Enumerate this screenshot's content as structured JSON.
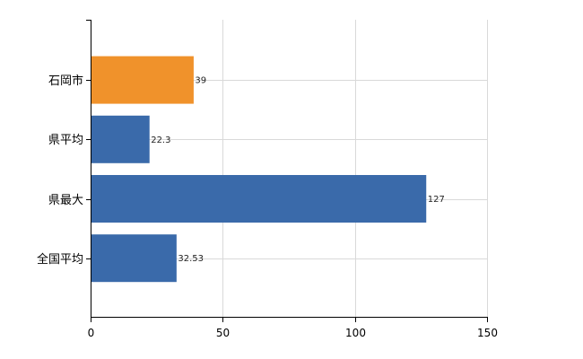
{
  "chart_data": {
    "type": "bar",
    "orientation": "horizontal",
    "categories": [
      "石岡市",
      "県平均",
      "県最大",
      "全国平均"
    ],
    "values": [
      39,
      22.3,
      127,
      32.53
    ],
    "value_labels": [
      "39",
      "22.3",
      "127",
      "32.53"
    ],
    "xlim": [
      0,
      150
    ],
    "x_ticks": [
      0,
      50,
      100,
      150
    ],
    "x_tick_labels": [
      "0",
      "50",
      "100",
      "150"
    ],
    "grid": true,
    "title": "",
    "xlabel": "",
    "ylabel": "",
    "colors": {
      "highlight": "#f0922b",
      "default": "#3a6aaa",
      "grid": "#d9d9d9",
      "axis": "#000000"
    },
    "highlight_category": "石岡市"
  }
}
